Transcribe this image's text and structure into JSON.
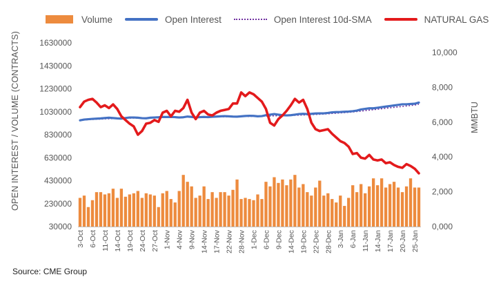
{
  "legend": {
    "volume": "Volume",
    "oi": "Open Interest",
    "sma": "Open Interest 10d-SMA",
    "gas": "NATURAL GAS"
  },
  "source": "Source: CME Group",
  "colors": {
    "volume": "#ED8B3E",
    "open_interest": "#4472C4",
    "sma": "#7030A0",
    "natural_gas": "#E31A1C",
    "axis_text": "#555555"
  },
  "chart_data": {
    "type": "bar",
    "title": "",
    "ylabel": "OPEN INTEREST / VOLUME (CONTRACTS)",
    "y2label": "MMBTU",
    "ylim": [
      30000,
      1630000
    ],
    "y2lim": [
      0,
      10000
    ],
    "yticks": [
      "1630000",
      "1430000",
      "1230000",
      "1030000",
      "830000",
      "630000",
      "430000",
      "230000",
      "30000"
    ],
    "y2ticks": [
      "10,000",
      "8,000",
      "6,000",
      "4,000",
      "2,000",
      "0,000"
    ],
    "xtick_labels": [
      "3-Oct",
      "6-Oct",
      "11-Oct",
      "14-Oct",
      "19-Oct",
      "24-Oct",
      "27-Oct",
      "1-Nov",
      "4-Nov",
      "9-Nov",
      "14-Nov",
      "17-Nov",
      "22-Nov",
      "28-Nov",
      "1-Dec",
      "6-Dec",
      "9-Dec",
      "14-Dec",
      "19-Dec",
      "22-Dec",
      "28-Dec",
      "3-Jan",
      "6-Jan",
      "11-Jan",
      "14-Jan",
      "17-Jan",
      "20-Jan",
      "25-Jan"
    ],
    "legend_position": "top",
    "grid": false,
    "series": [
      {
        "name": "Volume",
        "type": "bar",
        "axis": "left",
        "values": [
          280000,
          300000,
          200000,
          260000,
          330000,
          330000,
          310000,
          320000,
          360000,
          280000,
          360000,
          290000,
          310000,
          320000,
          340000,
          280000,
          320000,
          310000,
          300000,
          200000,
          320000,
          340000,
          270000,
          240000,
          340000,
          480000,
          420000,
          380000,
          280000,
          300000,
          380000,
          270000,
          330000,
          280000,
          330000,
          330000,
          300000,
          350000,
          440000,
          270000,
          280000,
          270000,
          260000,
          310000,
          270000,
          420000,
          380000,
          460000,
          410000,
          440000,
          390000,
          440000,
          480000,
          370000,
          400000,
          330000,
          300000,
          370000,
          430000,
          300000,
          320000,
          270000,
          240000,
          300000,
          210000,
          280000,
          390000,
          330000,
          400000,
          320000,
          380000,
          450000,
          390000,
          450000,
          370000,
          400000,
          420000,
          370000,
          330000,
          380000,
          450000,
          370000,
          370000
        ]
      },
      {
        "name": "Open Interest",
        "type": "line",
        "axis": "left",
        "values": [
          955000,
          962000,
          965000,
          968000,
          970000,
          972000,
          975000,
          978000,
          975000,
          972000,
          970000,
          975000,
          980000,
          980000,
          978000,
          974000,
          973000,
          978000,
          980000,
          982000,
          985000,
          984000,
          985000,
          983000,
          980000,
          982000,
          988000,
          985000,
          980000,
          983000,
          985000,
          983000,
          986000,
          988000,
          990000,
          992000,
          990000,
          988000,
          987000,
          990000,
          993000,
          995000,
          994000,
          990000,
          992000,
          1000000,
          1005000,
          1010000,
          1005000,
          1000000,
          998000,
          1000000,
          1005000,
          1010000,
          1012000,
          1010000,
          1012000,
          1015000,
          1016000,
          1016000,
          1020000,
          1025000,
          1027000,
          1028000,
          1030000,
          1032000,
          1035000,
          1040000,
          1050000,
          1055000,
          1060000,
          1060000,
          1065000,
          1070000,
          1075000,
          1080000,
          1085000,
          1090000,
          1095000,
          1095000,
          1098000,
          1100000,
          1110000
        ]
      },
      {
        "name": "Open Interest 10d-SMA",
        "type": "line",
        "axis": "left",
        "values": [
          955000,
          958000,
          961000,
          963000,
          965000,
          966000,
          968000,
          969000,
          970000,
          971000,
          972000,
          973000,
          974000,
          975000,
          975000,
          976000,
          976000,
          977000,
          977000,
          978000,
          979000,
          980000,
          980000,
          981000,
          981000,
          982000,
          982000,
          983000,
          983000,
          983000,
          984000,
          984000,
          984000,
          985000,
          986000,
          986000,
          986000,
          987000,
          987000,
          988000,
          988000,
          989000,
          990000,
          990000,
          991000,
          992000,
          993000,
          994000,
          995000,
          996000,
          997000,
          998000,
          999000,
          1000000,
          1002000,
          1003000,
          1005000,
          1006000,
          1008000,
          1010000,
          1012000,
          1015000,
          1017000,
          1020000,
          1022000,
          1025000,
          1028000,
          1032000,
          1035000,
          1040000,
          1044000,
          1048000,
          1052000,
          1056000,
          1060000,
          1064000,
          1068000,
          1072000,
          1076000,
          1080000,
          1084000,
          1088000,
          1095000
        ]
      },
      {
        "name": "NATURAL GAS",
        "type": "line",
        "axis": "right",
        "values": [
          6500,
          6800,
          6900,
          6950,
          6750,
          6500,
          6600,
          6450,
          6650,
          6400,
          6000,
          5800,
          5600,
          5450,
          5000,
          5200,
          5600,
          5650,
          5800,
          5700,
          6200,
          6300,
          6000,
          6300,
          6250,
          6450,
          6900,
          6200,
          5850,
          6200,
          6300,
          6100,
          6050,
          6200,
          6300,
          6350,
          6400,
          6700,
          6700,
          7300,
          7100,
          7300,
          7200,
          7000,
          6800,
          6400,
          5650,
          5500,
          5850,
          6050,
          6300,
          6600,
          6950,
          6750,
          6900,
          6400,
          5650,
          5300,
          5200,
          5250,
          5300,
          5050,
          4850,
          4650,
          4550,
          4350,
          3950,
          4000,
          3750,
          3700,
          3900,
          3650,
          3600,
          3650,
          3450,
          3500,
          3350,
          3250,
          3200,
          3400,
          3300,
          3150,
          2900
        ]
      }
    ]
  }
}
